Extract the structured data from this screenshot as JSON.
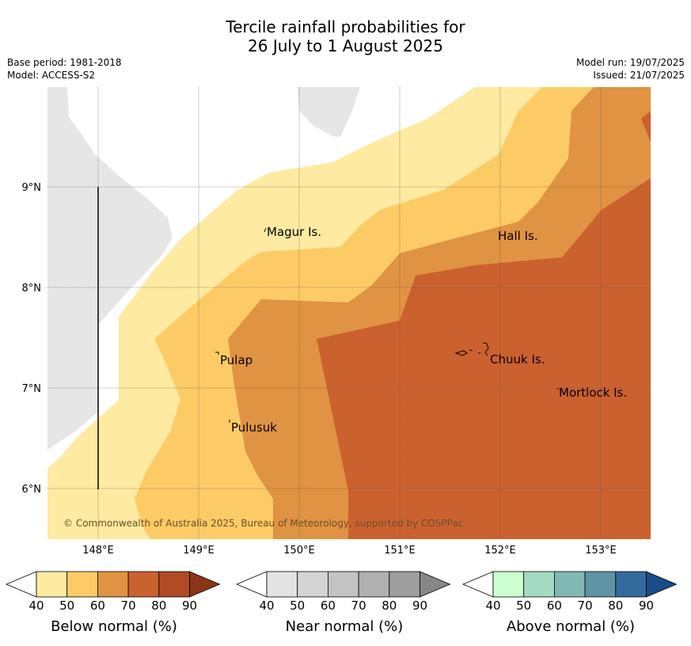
{
  "header": {
    "title_line1": "Tercile rainfall probabilities for",
    "title_line2": "26 July to 1 August 2025",
    "base_period": "Base period: 1981-2018",
    "model": "Model: ACCESS-S2",
    "model_run": "Model run: 19/07/2025",
    "issued": "Issued: 21/07/2025"
  },
  "map": {
    "lat_labels": [
      "9°N",
      "8°N",
      "7°N",
      "6°N"
    ],
    "lon_labels": [
      "148°E",
      "149°E",
      "150°E",
      "151°E",
      "152°E",
      "153°E"
    ],
    "places": [
      "Magur Is.",
      "Hall Is.",
      "Pulap",
      "Chuuk Is.",
      "Mortlock Is.",
      "Pulusuk"
    ],
    "copyright": "© Commonwealth of Australia 2025, Bureau of Meteorology, supported by COSPPac",
    "colors": {
      "land_gray": "#e6e6e6",
      "below_40_50": "#feeaa0",
      "below_50_60": "#fdcb65",
      "below_60_70": "#e09342",
      "below_70_80": "#cc6130",
      "below_80_90": "#b04b25"
    }
  },
  "legends": [
    {
      "label": "Below normal (%)",
      "ticks": [
        "40",
        "50",
        "60",
        "70",
        "80",
        "90"
      ],
      "colors": [
        "#feeaa0",
        "#fdcb65",
        "#e09342",
        "#cc6130",
        "#b04b25",
        "#8c3418"
      ]
    },
    {
      "label": "Near normal (%)",
      "ticks": [
        "40",
        "50",
        "60",
        "70",
        "80",
        "90"
      ],
      "colors": [
        "#e3e3e3",
        "#d4d4d4",
        "#c3c3c3",
        "#b0b0b0",
        "#9e9e9e",
        "#868686"
      ]
    },
    {
      "label": "Above normal (%)",
      "ticks": [
        "40",
        "50",
        "60",
        "70",
        "80",
        "90"
      ],
      "colors": [
        "#ccffd0",
        "#a3dbc2",
        "#82b8b3",
        "#5e94a5",
        "#336b9c",
        "#1a4c8a"
      ]
    }
  ]
}
